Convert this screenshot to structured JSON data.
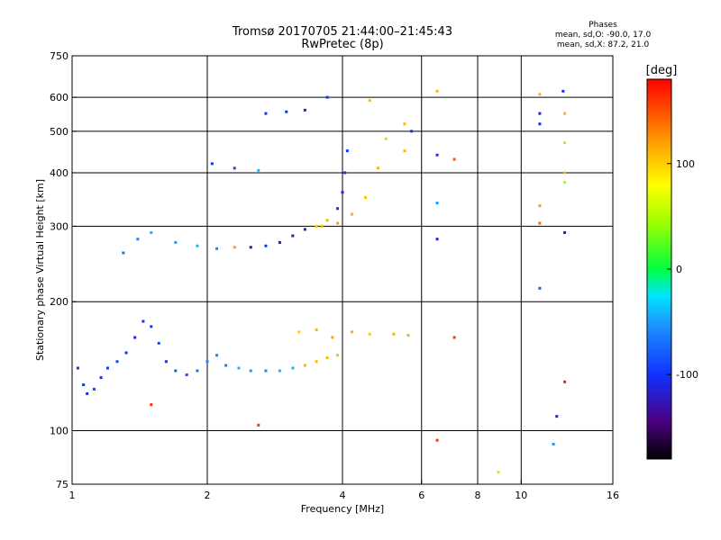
{
  "chart_data": {
    "type": "scatter",
    "title": "Tromsø 20170705 21:44:00–21:45:43",
    "subtitle": "RwPretec (8p)",
    "xlabel": "Frequency [MHz]",
    "ylabel": "Stationary phase Virtual Height [km]",
    "x_scale": "log",
    "y_scale": "log",
    "xlim": [
      1,
      16
    ],
    "ylim": [
      75,
      750
    ],
    "x_ticks": [
      1,
      2,
      4,
      6,
      8,
      10,
      16
    ],
    "y_ticks": [
      75,
      100,
      200,
      300,
      400,
      500,
      600,
      750
    ],
    "x_grid": [
      2,
      4,
      6,
      8,
      10
    ],
    "y_grid": [
      100,
      200,
      300,
      400,
      500,
      600
    ],
    "phase_info": {
      "heading": "Phases",
      "o_line": "mean, sd,O: -90.0, 17.0",
      "x_line": "mean, sd,X:  87.2, 21.0"
    },
    "colorbar": {
      "label": "[deg]",
      "range": [
        -180,
        180
      ],
      "ticks": [
        100,
        0,
        -100
      ]
    },
    "series": [
      {
        "name": "",
        "points": [
          [
            1.03,
            140,
            -100
          ],
          [
            1.06,
            128,
            -95
          ],
          [
            1.08,
            122,
            -100
          ],
          [
            1.12,
            125,
            -90
          ],
          [
            1.16,
            133,
            -100
          ],
          [
            1.2,
            140,
            -95
          ],
          [
            1.26,
            145,
            -90
          ],
          [
            1.32,
            152,
            -100
          ],
          [
            1.38,
            165,
            -110
          ],
          [
            1.44,
            180,
            -100
          ],
          [
            1.5,
            175,
            -95
          ],
          [
            1.56,
            160,
            -90
          ],
          [
            1.62,
            145,
            -100
          ],
          [
            1.7,
            138,
            -80
          ],
          [
            1.8,
            135,
            -85
          ],
          [
            1.9,
            138,
            -70
          ],
          [
            2.0,
            145,
            -60
          ],
          [
            2.1,
            150,
            -60
          ],
          [
            2.2,
            142,
            -60
          ],
          [
            2.35,
            140,
            -40
          ],
          [
            2.5,
            138,
            -50
          ],
          [
            2.7,
            138,
            -60
          ],
          [
            2.9,
            138,
            -40
          ],
          [
            3.1,
            140,
            -40
          ],
          [
            3.3,
            142,
            110
          ],
          [
            3.5,
            145,
            110
          ],
          [
            3.7,
            148,
            110
          ],
          [
            3.9,
            150,
            105
          ],
          [
            3.2,
            170,
            100
          ],
          [
            3.5,
            172,
            110
          ],
          [
            3.8,
            165,
            120
          ],
          [
            4.2,
            170,
            110
          ],
          [
            4.6,
            168,
            100
          ],
          [
            5.2,
            168,
            110
          ],
          [
            5.6,
            167,
            110
          ],
          [
            1.3,
            260,
            -70
          ],
          [
            1.4,
            280,
            -60
          ],
          [
            1.5,
            290,
            -40
          ],
          [
            1.7,
            275,
            -50
          ],
          [
            1.9,
            270,
            -40
          ],
          [
            2.1,
            266,
            -60
          ],
          [
            2.3,
            268,
            120
          ],
          [
            2.5,
            268,
            -120
          ],
          [
            2.7,
            270,
            -100
          ],
          [
            2.9,
            275,
            -120
          ],
          [
            3.1,
            285,
            -130
          ],
          [
            3.3,
            295,
            -120
          ],
          [
            3.5,
            300,
            100
          ],
          [
            3.7,
            310,
            110
          ],
          [
            3.9,
            330,
            -100
          ],
          [
            4.0,
            360,
            -110
          ],
          [
            4.05,
            400,
            -100
          ],
          [
            4.1,
            450,
            -95
          ],
          [
            3.6,
            300,
            110
          ],
          [
            3.9,
            305,
            120
          ],
          [
            4.2,
            320,
            110
          ],
          [
            4.5,
            350,
            105
          ],
          [
            4.8,
            410,
            110
          ],
          [
            5.0,
            480,
            100
          ],
          [
            5.5,
            450,
            110
          ],
          [
            5.7,
            500,
            -100
          ],
          [
            2.05,
            420,
            -100
          ],
          [
            2.3,
            410,
            -90
          ],
          [
            2.6,
            405,
            -40
          ],
          [
            2.7,
            550,
            -100
          ],
          [
            3.0,
            555,
            -100
          ],
          [
            3.3,
            560,
            -110
          ],
          [
            3.7,
            600,
            -100
          ],
          [
            4.6,
            590,
            110
          ],
          [
            5.5,
            520,
            110
          ],
          [
            6.5,
            440,
            -100
          ],
          [
            6.5,
            340,
            -50
          ],
          [
            6.5,
            280,
            -110
          ],
          [
            6.5,
            620,
            110
          ],
          [
            6.5,
            95,
            160
          ],
          [
            7.1,
            430,
            150
          ],
          [
            7.1,
            165,
            160
          ],
          [
            8.9,
            80,
            50
          ],
          [
            11.0,
            610,
            110
          ],
          [
            11.0,
            550,
            -110
          ],
          [
            11.0,
            520,
            -100
          ],
          [
            11.0,
            335,
            120
          ],
          [
            11.0,
            305,
            140
          ],
          [
            11.0,
            215,
            -80
          ],
          [
            12.4,
            620,
            -100
          ],
          [
            12.5,
            550,
            110
          ],
          [
            12.5,
            470,
            50
          ],
          [
            12.5,
            400,
            110
          ],
          [
            12.5,
            380,
            50
          ],
          [
            12.5,
            290,
            -120
          ],
          [
            12.5,
            130,
            170
          ],
          [
            12.0,
            108,
            -110
          ],
          [
            11.8,
            93,
            -50
          ],
          [
            1.5,
            115,
            160
          ],
          [
            2.6,
            103,
            160
          ]
        ]
      }
    ]
  }
}
